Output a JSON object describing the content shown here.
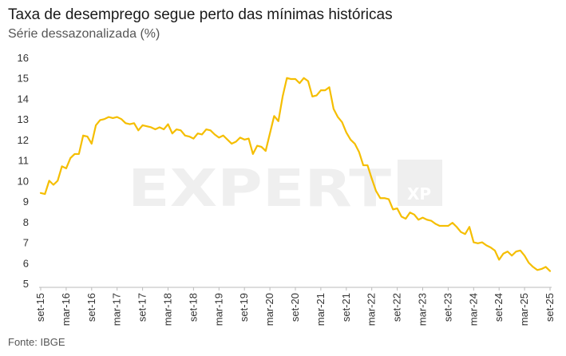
{
  "header": {
    "title": "Taxa de desemprego segue perto das mínimas históricas",
    "subtitle": "Série dessazonalizada (%)"
  },
  "footer": {
    "source": "Fonte: IBGE"
  },
  "watermark": {
    "text": "EXPERT",
    "badge": "XP"
  },
  "colors": {
    "line": "#F5BE00",
    "axis": "#bbbbbb",
    "watermark": "#efefef"
  },
  "chart_data": {
    "type": "line",
    "title": "Taxa de desemprego segue perto das mínimas históricas",
    "subtitle": "Série dessazonalizada (%)",
    "xlabel": "",
    "ylabel": "",
    "ylim": [
      5,
      16
    ],
    "yticks": [
      5,
      6,
      7,
      8,
      9,
      10,
      11,
      12,
      13,
      14,
      15,
      16
    ],
    "xtick_labels": [
      "set-15",
      "mar-16",
      "set-16",
      "mar-17",
      "set-17",
      "mar-18",
      "set-18",
      "mar-19",
      "set-19",
      "mar-20",
      "set-20",
      "mar-21",
      "set-21",
      "mar-22",
      "set-22",
      "mar-23",
      "set-23",
      "mar-24",
      "set-24",
      "mar-25",
      "set-25"
    ],
    "grid": false,
    "legend": "none",
    "series": [
      {
        "values": [
          9.4,
          9.35,
          10.0,
          9.8,
          10.0,
          10.7,
          10.6,
          11.1,
          11.3,
          11.3,
          12.2,
          12.15,
          11.8,
          12.7,
          12.95,
          13.0,
          13.1,
          13.05,
          13.1,
          13.0,
          12.8,
          12.75,
          12.8,
          12.45,
          12.7,
          12.65,
          12.6,
          12.5,
          12.6,
          12.5,
          12.75,
          12.3,
          12.5,
          12.45,
          12.2,
          12.15,
          12.05,
          12.3,
          12.25,
          12.5,
          12.45,
          12.25,
          12.1,
          12.2,
          12.0,
          11.8,
          11.9,
          12.1,
          12.0,
          12.05,
          11.3,
          11.7,
          11.65,
          11.45,
          12.3,
          13.15,
          12.9,
          14.1,
          15.0,
          14.95,
          14.95,
          14.75,
          15.0,
          14.85,
          14.1,
          14.15,
          14.4,
          14.4,
          14.55,
          13.5,
          13.1,
          12.85,
          12.35,
          12.0,
          11.8,
          11.4,
          10.75,
          10.75,
          10.1,
          9.5,
          9.15,
          9.15,
          9.1,
          8.6,
          8.65,
          8.25,
          8.15,
          8.45,
          8.35,
          8.1,
          8.2,
          8.1,
          8.05,
          7.9,
          7.8,
          7.8,
          7.8,
          7.95,
          7.75,
          7.5,
          7.4,
          7.75,
          7.0,
          6.95,
          7.0,
          6.85,
          6.75,
          6.6,
          6.15,
          6.45,
          6.55,
          6.35,
          6.55,
          6.6,
          6.35,
          6.0,
          5.8,
          5.65,
          5.7,
          5.8,
          5.6
        ]
      }
    ]
  }
}
